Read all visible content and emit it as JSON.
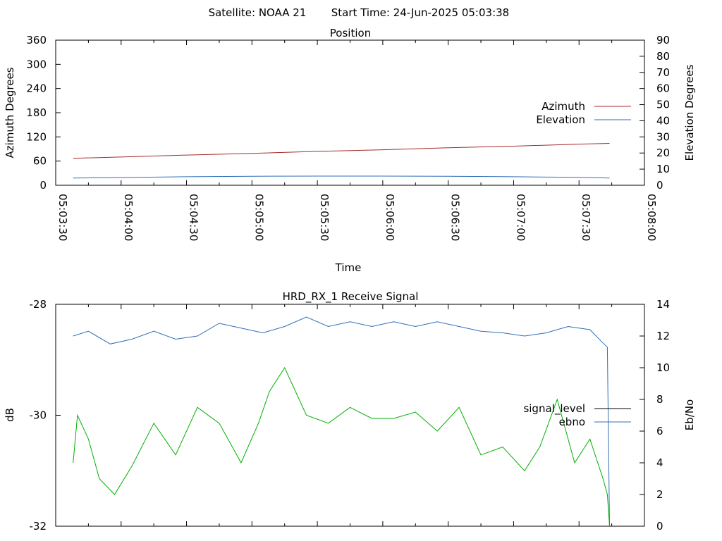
{
  "header": {
    "satellite": "Satellite: NOAA 21",
    "start_time": "Start Time: 24-Jun-2025 05:03:38"
  },
  "colors": {
    "azimuth": "#a52a2a",
    "elevation": "#2f6fb5",
    "signal_level": "#000000",
    "ebno_line": "#2f6fb5",
    "rx_green": "#00b000",
    "axis": "#000000"
  },
  "chart_data": [
    {
      "type": "line",
      "title": "Position",
      "xlabel": "Time",
      "ylabel": "Azimuth Degrees",
      "y2label": "Elevation Degrees",
      "x_ticks": [
        "05:03:30",
        "05:04:00",
        "05:04:30",
        "05:05:00",
        "05:05:30",
        "05:06:00",
        "05:06:30",
        "05:07:00",
        "05:07:30",
        "05:08:00"
      ],
      "xlim": [
        "05:03:30",
        "05:08:00"
      ],
      "ylim": [
        0,
        360
      ],
      "y_ticks": [
        0,
        60,
        120,
        180,
        240,
        300,
        360
      ],
      "y2lim": [
        0,
        90
      ],
      "y2_ticks": [
        0,
        10,
        20,
        30,
        40,
        50,
        60,
        70,
        80,
        90
      ],
      "legend_position": "right",
      "series": [
        {
          "name": "Azimuth",
          "axis": "y1",
          "x": [
            "05:03:38",
            "05:04:00",
            "05:04:30",
            "05:05:00",
            "05:05:30",
            "05:06:00",
            "05:06:30",
            "05:07:00",
            "05:07:30",
            "05:07:44"
          ],
          "y": [
            67,
            70,
            75,
            79,
            84,
            88,
            93,
            97,
            102,
            104
          ]
        },
        {
          "name": "Elevation",
          "axis": "y2",
          "x": [
            "05:03:38",
            "05:04:00",
            "05:04:30",
            "05:05:00",
            "05:05:30",
            "05:06:00",
            "05:06:30",
            "05:07:00",
            "05:07:30",
            "05:07:44"
          ],
          "y": [
            4.5,
            4.8,
            5.3,
            5.6,
            5.7,
            5.7,
            5.6,
            5.3,
            4.9,
            4.5
          ]
        }
      ]
    },
    {
      "type": "line",
      "title": "HRD_RX_1 Receive Signal",
      "ylabel": "dB",
      "y2label": "Eb/No",
      "x_ticks": [
        "05:03:30",
        "05:04:00",
        "05:04:30",
        "05:05:00",
        "05:05:30",
        "05:06:00",
        "05:06:30",
        "05:07:00",
        "05:07:30",
        "05:08:00"
      ],
      "xlim": [
        "05:03:30",
        "05:08:00"
      ],
      "ylim": [
        -32,
        -28
      ],
      "y_ticks": [
        -32,
        -30,
        -28
      ],
      "y2lim": [
        0,
        14
      ],
      "y2_ticks": [
        0,
        2,
        4,
        6,
        8,
        10,
        12,
        14
      ],
      "legend_position": "right",
      "series": [
        {
          "name": "signal_level",
          "axis": "y1",
          "x": [],
          "y": []
        },
        {
          "name": "ebno",
          "axis": "y2",
          "x": [
            "05:03:38",
            "05:03:45",
            "05:03:55",
            "05:04:05",
            "05:04:15",
            "05:04:25",
            "05:04:35",
            "05:04:45",
            "05:04:55",
            "05:05:05",
            "05:05:15",
            "05:05:25",
            "05:05:35",
            "05:05:45",
            "05:05:55",
            "05:06:05",
            "05:06:15",
            "05:06:25",
            "05:06:35",
            "05:06:45",
            "05:06:55",
            "05:07:05",
            "05:07:15",
            "05:07:25",
            "05:07:35",
            "05:07:40",
            "05:07:43",
            "05:07:44"
          ],
          "y": [
            12.0,
            12.3,
            11.5,
            11.8,
            12.3,
            11.8,
            12.0,
            12.8,
            12.5,
            12.2,
            12.6,
            13.2,
            12.6,
            12.9,
            12.6,
            12.9,
            12.6,
            12.9,
            12.6,
            12.3,
            12.2,
            12.0,
            12.2,
            12.6,
            12.4,
            11.7,
            11.3,
            0.0
          ]
        },
        {
          "axis": "y2",
          "x": [
            "05:03:38",
            "05:03:40",
            "05:03:45",
            "05:03:50",
            "05:03:57",
            "05:04:05",
            "05:04:15",
            "05:04:25",
            "05:04:35",
            "05:04:45",
            "05:04:55",
            "05:05:03",
            "05:05:08",
            "05:05:15",
            "05:05:25",
            "05:05:35",
            "05:05:45",
            "05:05:55",
            "05:06:05",
            "05:06:15",
            "05:06:25",
            "05:06:35",
            "05:06:45",
            "05:06:55",
            "05:07:05",
            "05:07:12",
            "05:07:20",
            "05:07:28",
            "05:07:35",
            "05:07:41",
            "05:07:43",
            "05:07:44"
          ],
          "y": [
            4.0,
            7.0,
            5.5,
            3.0,
            2.0,
            3.8,
            6.5,
            4.5,
            7.5,
            6.5,
            4.0,
            6.5,
            8.5,
            10.0,
            7.0,
            6.5,
            7.5,
            6.8,
            6.8,
            7.2,
            6.0,
            7.5,
            4.5,
            5.0,
            3.5,
            5.0,
            8.0,
            4.0,
            5.5,
            3.0,
            2.0,
            0.0
          ]
        }
      ]
    }
  ]
}
